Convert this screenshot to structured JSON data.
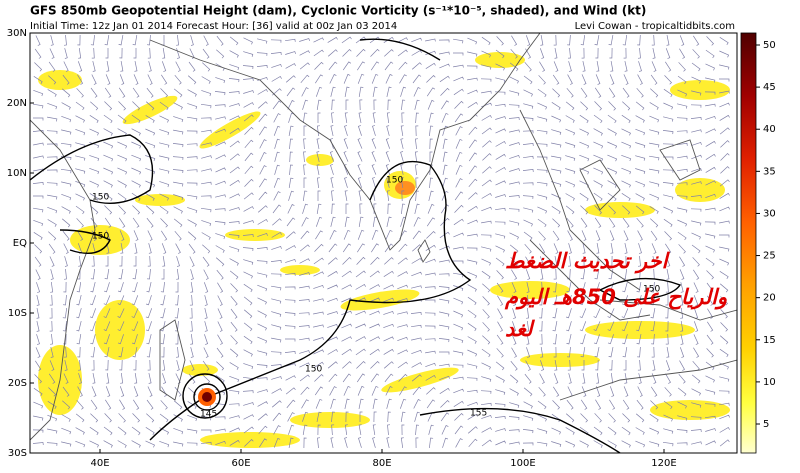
{
  "header": {
    "title": "GFS 850mb Geopotential Height (dam), Cyclonic Vorticity (s⁻¹*10⁻⁵, shaded), and Wind (kt)",
    "subtitle": "Initial Time: 12z Jan 01 2014 Forecast Hour: [36] valid at 00z Jan 03 2014",
    "credit": "Levi Cowan - tropicaltidbits.com"
  },
  "map": {
    "lat_labels": [
      "30N",
      "20N",
      "10N",
      "EQ",
      "10S",
      "20S",
      "30S"
    ],
    "lon_labels": [
      "40E",
      "60E",
      "80E",
      "100E",
      "120E"
    ],
    "contour_labels": [
      "150",
      "150",
      "150",
      "150",
      "150",
      "145",
      "155"
    ]
  },
  "colorbar": {
    "ticks": [
      5,
      10,
      15,
      20,
      25,
      30,
      35,
      40,
      45,
      50
    ]
  },
  "overlay": {
    "lines": [
      "اخر تحديث الضغط",
      "والرياح على 850هـ اليوم",
      "لغد"
    ]
  }
}
